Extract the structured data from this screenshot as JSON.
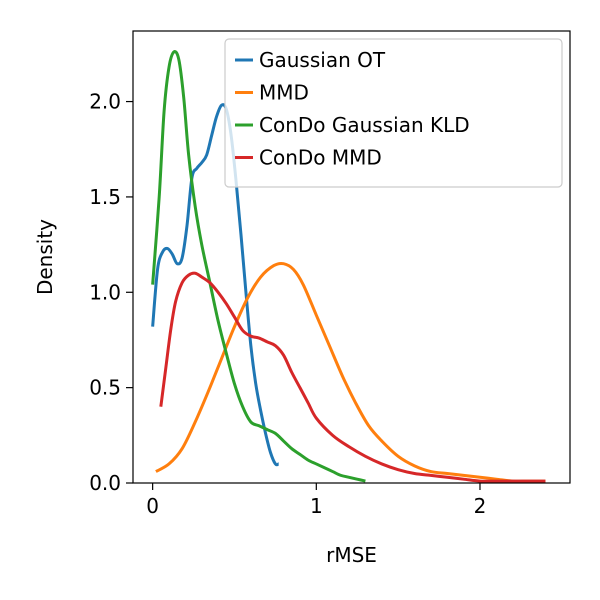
{
  "chart_data": {
    "type": "line",
    "xlabel": "rMSE",
    "ylabel": "Density",
    "xlim": [
      -0.12,
      2.55
    ],
    "ylim": [
      0,
      2.37
    ],
    "xticks": [
      0,
      1,
      2
    ],
    "yticks": [
      0.0,
      0.5,
      1.0,
      1.5,
      2.0
    ],
    "xtick_labels": [
      "0",
      "1",
      "2"
    ],
    "ytick_labels": [
      "0.0",
      "0.5",
      "1.0",
      "1.5",
      "2.0"
    ],
    "grid": false,
    "legend_position": "top-right",
    "series": [
      {
        "name": "Gaussian OT",
        "color": "#1f77b4",
        "x": [
          0.0,
          0.03,
          0.06,
          0.09,
          0.12,
          0.15,
          0.18,
          0.21,
          0.24,
          0.27,
          0.3,
          0.33,
          0.36,
          0.39,
          0.42,
          0.45,
          0.48,
          0.51,
          0.54,
          0.57,
          0.6,
          0.63,
          0.66,
          0.69,
          0.72,
          0.75,
          0.77
        ],
        "y": [
          0.82,
          1.12,
          1.21,
          1.23,
          1.2,
          1.15,
          1.18,
          1.35,
          1.6,
          1.65,
          1.68,
          1.72,
          1.82,
          1.92,
          1.98,
          1.96,
          1.82,
          1.58,
          1.3,
          1.0,
          0.72,
          0.52,
          0.38,
          0.26,
          0.16,
          0.1,
          0.1
        ]
      },
      {
        "name": "MMD",
        "color": "#ff7f0e",
        "x": [
          0.02,
          0.1,
          0.18,
          0.26,
          0.34,
          0.42,
          0.5,
          0.58,
          0.66,
          0.74,
          0.8,
          0.86,
          0.92,
          1.0,
          1.08,
          1.16,
          1.24,
          1.32,
          1.4,
          1.5,
          1.6,
          1.7,
          1.8,
          1.9,
          2.0,
          2.1,
          2.2,
          2.3,
          2.4
        ],
        "y": [
          0.06,
          0.1,
          0.18,
          0.32,
          0.48,
          0.65,
          0.82,
          0.97,
          1.08,
          1.14,
          1.15,
          1.12,
          1.04,
          0.88,
          0.72,
          0.56,
          0.42,
          0.3,
          0.22,
          0.14,
          0.09,
          0.06,
          0.05,
          0.04,
          0.03,
          0.02,
          0.01,
          0.01,
          0.01
        ]
      },
      {
        "name": "ConDo Gaussian KLD",
        "color": "#2ca02c",
        "x": [
          0.0,
          0.04,
          0.07,
          0.1,
          0.13,
          0.16,
          0.19,
          0.22,
          0.26,
          0.3,
          0.35,
          0.4,
          0.45,
          0.5,
          0.55,
          0.6,
          0.65,
          0.7,
          0.75,
          0.8,
          0.85,
          0.9,
          0.95,
          1.0,
          1.05,
          1.1,
          1.15,
          1.2,
          1.25,
          1.3
        ],
        "y": [
          1.04,
          1.5,
          1.95,
          2.18,
          2.26,
          2.22,
          2.02,
          1.72,
          1.45,
          1.25,
          1.05,
          0.85,
          0.68,
          0.52,
          0.4,
          0.32,
          0.3,
          0.28,
          0.26,
          0.22,
          0.18,
          0.15,
          0.12,
          0.1,
          0.08,
          0.06,
          0.04,
          0.03,
          0.02,
          0.01
        ]
      },
      {
        "name": "ConDo MMD",
        "color": "#d62728",
        "x": [
          0.05,
          0.08,
          0.11,
          0.14,
          0.18,
          0.22,
          0.26,
          0.3,
          0.35,
          0.4,
          0.45,
          0.5,
          0.55,
          0.6,
          0.65,
          0.7,
          0.75,
          0.8,
          0.85,
          0.9,
          0.95,
          1.0,
          1.1,
          1.2,
          1.3,
          1.4,
          1.5,
          1.6,
          1.7,
          1.8,
          1.9,
          2.0,
          2.1,
          2.2,
          2.3,
          2.4
        ],
        "y": [
          0.4,
          0.6,
          0.8,
          0.95,
          1.05,
          1.09,
          1.1,
          1.08,
          1.05,
          1.0,
          0.94,
          0.87,
          0.8,
          0.77,
          0.76,
          0.74,
          0.72,
          0.67,
          0.58,
          0.5,
          0.42,
          0.34,
          0.25,
          0.19,
          0.14,
          0.1,
          0.07,
          0.05,
          0.04,
          0.03,
          0.02,
          0.01,
          0.01,
          0.01,
          0.01,
          0.01
        ]
      }
    ]
  }
}
